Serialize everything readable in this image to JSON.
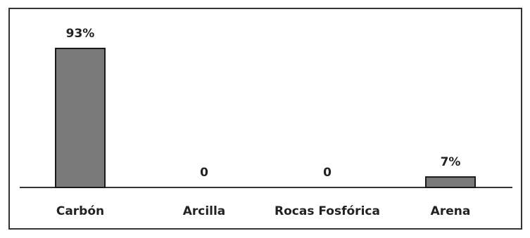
{
  "chart_data": {
    "type": "bar",
    "categories": [
      "Carbón",
      "Arcilla",
      "Rocas Fosfórica",
      "Arena"
    ],
    "values": [
      93,
      0,
      0,
      7
    ],
    "data_labels": [
      "93%",
      "0",
      "0",
      "7%"
    ],
    "title": "",
    "xlabel": "",
    "ylabel": "",
    "ylim": [
      0,
      100
    ],
    "grid": false,
    "legend": "none",
    "bar_color": "#7a7a7a",
    "bar_stroke": "#1a1a1a",
    "axis_color": "#333333",
    "frame_color": "#333333"
  }
}
